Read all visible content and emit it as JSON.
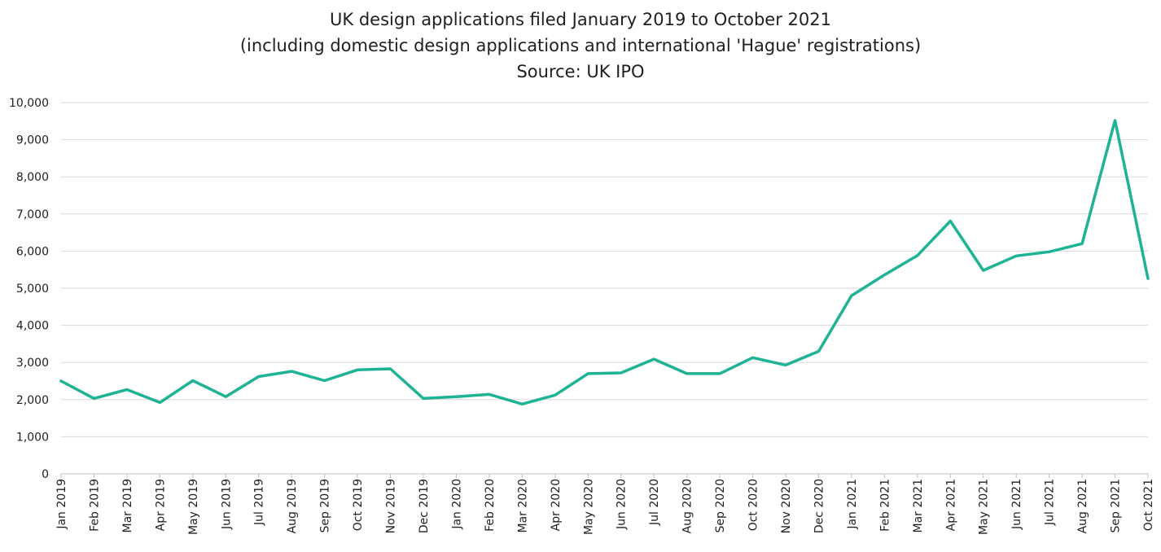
{
  "chart_data": {
    "type": "line",
    "title": "UK design applications filed January 2019 to October 2021",
    "subtitle": "(including domestic design applications and international 'Hague' registrations)",
    "source": "Source: UK IPO",
    "xlabel": "",
    "ylabel": "",
    "ylim": [
      0,
      10000
    ],
    "yticks": [
      "0",
      "1,000",
      "2,000",
      "3,000",
      "4,000",
      "5,000",
      "6,000",
      "7,000",
      "8,000",
      "9,000",
      "10,000"
    ],
    "grid": true,
    "categories": [
      "Jan 2019",
      "Feb 2019",
      "Mar 2019",
      "Apr 2019",
      "May 2019",
      "Jun 2019",
      "Jul 2019",
      "Aug 2019",
      "Sep 2019",
      "Oct 2019",
      "Nov 2019",
      "Dec 2019",
      "Jan 2020",
      "Feb 2020",
      "Mar 2020",
      "Apr 2020",
      "May 2020",
      "Jun 2020",
      "Jul 2020",
      "Aug 2020",
      "Sep 2020",
      "Oct 2020",
      "Nov 2020",
      "Dec 2020",
      "Jan 2021",
      "Feb 2021",
      "Mar 2021",
      "Apr 2021",
      "May 2021",
      "Jun 2021",
      "Jul 2021",
      "Aug 2021",
      "Sep 2021",
      "Oct 2021"
    ],
    "series": [
      {
        "name": "",
        "color": "#1db394",
        "values": [
          2500,
          2030,
          2270,
          1920,
          2510,
          2080,
          2620,
          2760,
          2510,
          2800,
          2830,
          2030,
          2080,
          2140,
          1880,
          2120,
          2700,
          2720,
          3090,
          2700,
          2700,
          3130,
          2930,
          3300,
          4800,
          5360,
          5880,
          6810,
          5480,
          5870,
          5980,
          6200,
          9520,
          5260
        ]
      }
    ]
  }
}
